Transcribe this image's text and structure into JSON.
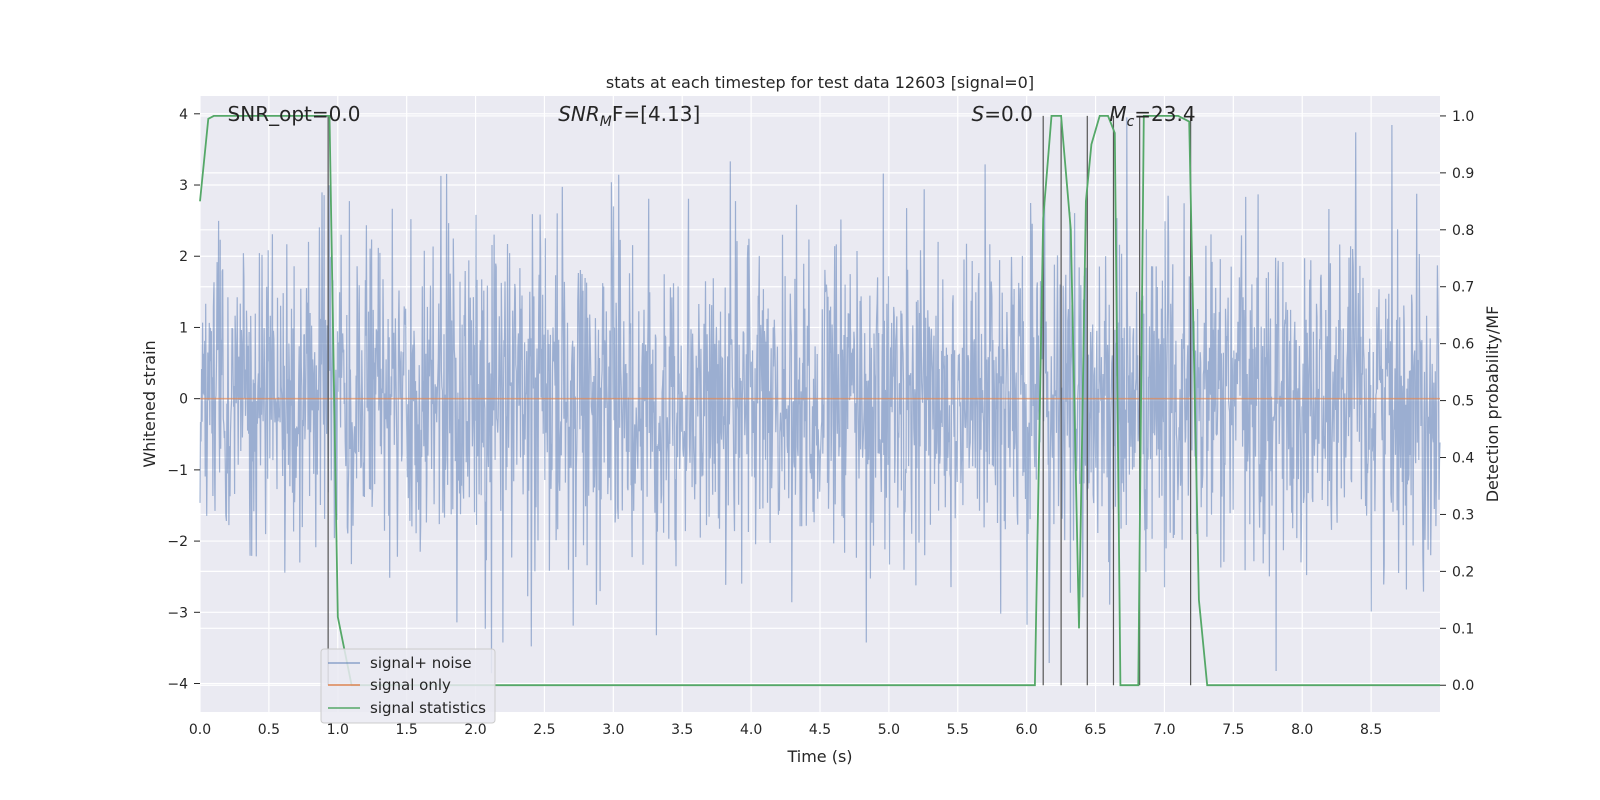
{
  "chart_data": {
    "type": "line",
    "title": "stats at each timestep for test data 12603 [signal=0]",
    "xlabel": "Time (s)",
    "ylabel": "Whitened strain",
    "y2label": "Detection probability/MF",
    "xlim": [
      0.0,
      9.0
    ],
    "ylim": [
      -4.4,
      4.25
    ],
    "y2lim": [
      -0.047,
      1.035
    ],
    "xticks": [
      0.0,
      0.5,
      1.0,
      1.5,
      2.0,
      2.5,
      3.0,
      3.5,
      4.0,
      4.5,
      5.0,
      5.5,
      6.0,
      6.5,
      7.0,
      7.5,
      8.0,
      8.5
    ],
    "xtick_labels": [
      "0.0",
      "0.5",
      "1.0",
      "1.5",
      "2.0",
      "2.5",
      "3.0",
      "3.5",
      "4.0",
      "4.5",
      "5.0",
      "5.5",
      "6.0",
      "6.5",
      "7.0",
      "7.5",
      "8.0",
      "8.5"
    ],
    "yticks": [
      4,
      3,
      2,
      1,
      0,
      -1,
      -2,
      -3,
      -4
    ],
    "ytick_labels": [
      "4",
      "3",
      "2",
      "1",
      "0",
      "−1",
      "−2",
      "−3",
      "−4"
    ],
    "y2ticks": [
      1.0,
      0.9,
      0.8,
      0.7,
      0.6,
      0.5,
      0.4,
      0.3,
      0.2,
      0.1,
      0.0
    ],
    "y2tick_labels": [
      "1.0",
      "0.9",
      "0.8",
      "0.7",
      "0.6",
      "0.5",
      "0.4",
      "0.3",
      "0.2",
      "0.1",
      "0.0"
    ],
    "grid": true,
    "legend_position": "lower-left",
    "colors": {
      "plot_background": "#eaeaf2",
      "grid": "#ffffff",
      "noise": "#4c72b0",
      "signal_only": "#dd8452",
      "statistics": "#55a868",
      "vlines": "#555555"
    },
    "series": [
      {
        "name": "signal+ noise",
        "axis": "left",
        "kind": "noise",
        "envelope": {
          "typical_peak_range": [
            1.5,
            2.5
          ],
          "max": 3.95,
          "min": -4.0
        }
      },
      {
        "name": "signal only",
        "axis": "left",
        "x": [
          0.0,
          9.0
        ],
        "y": [
          0.0,
          0.0
        ]
      },
      {
        "name": "signal statistics",
        "axis": "right",
        "x": [
          0.0,
          0.06,
          0.1,
          0.15,
          0.3,
          0.5,
          0.7,
          0.9,
          0.94,
          1.0,
          1.1,
          1.15,
          1.2,
          1.5,
          2.0,
          3.0,
          4.0,
          5.0,
          6.0,
          6.06,
          6.12,
          6.18,
          6.25,
          6.32,
          6.38,
          6.43,
          6.47,
          6.53,
          6.59,
          6.64,
          6.68,
          6.72,
          6.78,
          6.81,
          6.85,
          6.9,
          7.0,
          7.1,
          7.18,
          7.25,
          7.31,
          7.35,
          8.0,
          9.0
        ],
        "y": [
          0.85,
          0.995,
          1.0,
          1.0,
          1.0,
          1.0,
          1.0,
          1.0,
          1.0,
          0.12,
          0.0,
          0.0,
          0.0,
          0.0,
          0.0,
          0.0,
          0.0,
          0.0,
          0.0,
          0.0,
          0.82,
          1.0,
          1.0,
          0.8,
          0.1,
          0.85,
          0.95,
          1.0,
          1.0,
          0.97,
          0.0,
          0.0,
          0.0,
          0.0,
          1.0,
          1.0,
          1.0,
          1.0,
          0.99,
          0.15,
          0.0,
          0.0,
          0.0,
          0.0
        ]
      }
    ],
    "vlines_x": [
      0.93,
      6.12,
      6.25,
      6.44,
      6.63,
      6.82,
      7.19
    ],
    "annotations": [
      {
        "text": "SNR_opt=0.0",
        "x": 0.2,
        "y": 4.0
      },
      {
        "text": "SNR",
        "sub": "M",
        "after": "F=[4.13]",
        "x": 2.6,
        "y": 4.0
      },
      {
        "text": "S",
        "sub": "",
        "after": "=0.0",
        "x": 5.6,
        "y": 4.0
      },
      {
        "text": "M",
        "sub": "c",
        "after": "=23.4",
        "x": 6.6,
        "y": 4.0
      }
    ]
  }
}
